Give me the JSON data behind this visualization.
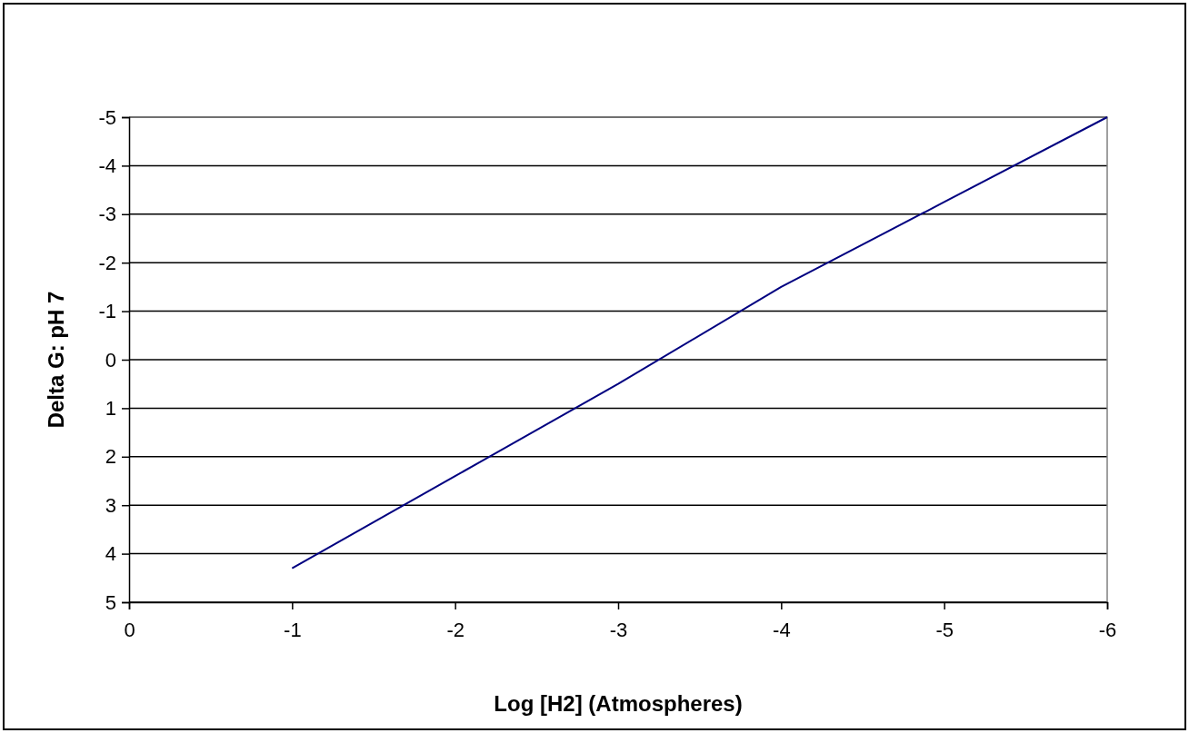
{
  "chart_data": {
    "type": "line",
    "xlabel": "Log [H2] (Atmospheres)",
    "ylabel": "Delta G: pH 7",
    "x": [
      -1,
      -2,
      -3,
      -4,
      -5,
      -6
    ],
    "series": [
      {
        "color": "#000080",
        "values": [
          4.3,
          2.4,
          0.5,
          -1.5,
          -3.25,
          -5
        ]
      }
    ],
    "xlim": [
      0,
      -6
    ],
    "xticks": [
      0,
      -1,
      -2,
      -3,
      -4,
      -5,
      -6
    ],
    "ylim": [
      5,
      -5
    ],
    "yticks": [
      5,
      4,
      3,
      2,
      1,
      0,
      -1,
      -2,
      -3,
      -4,
      -5
    ],
    "grid": "y",
    "marker": "none",
    "line_style": "solid"
  }
}
